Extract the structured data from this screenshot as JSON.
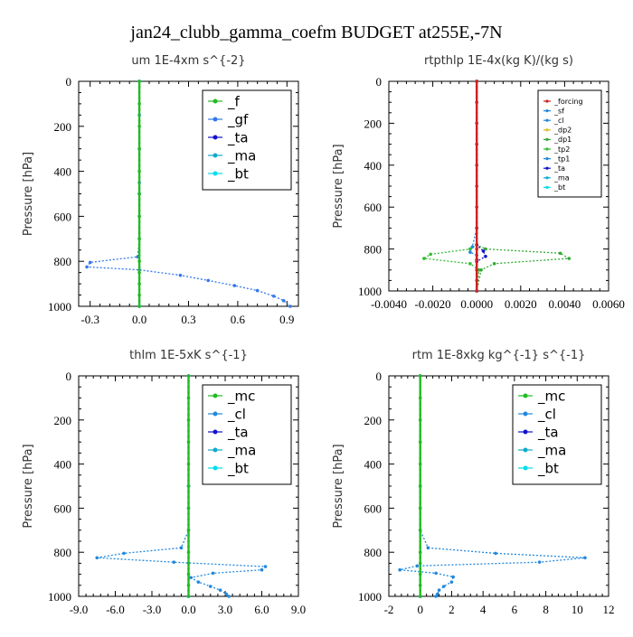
{
  "page": {
    "title": "jan24_clubb_gamma_coefm  BUDGET at255E,-7N"
  },
  "colors": {
    "mc": "#22bb22",
    "f": "#22bb22",
    "gf": "#3377ee",
    "cl": "#2288dd",
    "ta": "#1111cc",
    "ma": "#11aacc",
    "bt": "#00ddee",
    "forcing": "#cc2222",
    "tp2": "#33bb33",
    "dp2": "#ddbb22",
    "dp1": "#33aa33"
  },
  "chart_data": [
    {
      "type": "line",
      "title": "um   1E-4xm s^{-2}",
      "ylabel": "Pressure [hPa]",
      "xlim": [
        -0.37,
        0.97
      ],
      "ylim": [
        1000,
        0
      ],
      "x_ticks": [
        -0.3,
        0.0,
        0.3,
        0.6,
        0.9
      ],
      "x_tick_labels": [
        "-0.3",
        "0.0",
        "0.3",
        "0.6",
        "0.9"
      ],
      "y_ticks": [
        0,
        200,
        400,
        600,
        800,
        1000
      ],
      "y_tick_labels": [
        "0",
        "200",
        "400",
        "600",
        "800",
        "1000"
      ],
      "legend": {
        "position": "top-right",
        "size": "large",
        "entries": [
          "_f",
          "_gf",
          "_ta",
          "_ma",
          "_bt"
        ]
      },
      "series": [
        {
          "name": "_f",
          "color_key": "f",
          "points": [
            [
              0,
              0
            ],
            [
              0,
              100
            ],
            [
              0,
              200
            ],
            [
              0,
              300
            ],
            [
              0,
              400
            ],
            [
              0,
              500
            ],
            [
              0,
              600
            ],
            [
              0,
              700
            ],
            [
              0,
              800
            ],
            [
              0,
              850
            ],
            [
              0,
              900
            ],
            [
              0,
              950
            ],
            [
              0,
              1000
            ]
          ]
        },
        {
          "name": "_gf",
          "color_key": "gf",
          "points": [
            [
              0,
              0
            ],
            [
              0,
              150
            ],
            [
              0,
              300
            ],
            [
              0,
              450
            ],
            [
              0,
              600
            ],
            [
              0,
              700
            ],
            [
              -0.01,
              780
            ],
            [
              -0.3,
              805
            ],
            [
              -0.32,
              825
            ],
            [
              0.0,
              838
            ],
            [
              0.25,
              862
            ],
            [
              0.42,
              885
            ],
            [
              0.58,
              908
            ],
            [
              0.72,
              930
            ],
            [
              0.82,
              955
            ],
            [
              0.88,
              975
            ],
            [
              0.92,
              1000
            ]
          ]
        },
        {
          "name": "_ta",
          "color_key": "ta",
          "points": [
            [
              0,
              0
            ],
            [
              0,
              500
            ],
            [
              0,
              1000
            ]
          ]
        },
        {
          "name": "_ma",
          "color_key": "ma",
          "points": [
            [
              0,
              0
            ],
            [
              0,
              500
            ],
            [
              0,
              1000
            ]
          ]
        },
        {
          "name": "_bt",
          "color_key": "bt",
          "points": [
            [
              0,
              0
            ],
            [
              0,
              500
            ],
            [
              0,
              1000
            ]
          ]
        }
      ]
    },
    {
      "type": "line",
      "title": "rtpthlp   1E-4x(kg K)/(kg s)",
      "ylabel": "Pressure [hPa]",
      "xlim": [
        -0.004,
        0.006
      ],
      "ylim": [
        1000,
        0
      ],
      "x_ticks": [
        -0.004,
        -0.002,
        0.0,
        0.002,
        0.004,
        0.006
      ],
      "x_tick_labels": [
        "-0.0040",
        "-0.0020",
        "0.0000",
        "0.0020",
        "0.0040",
        "0.0060"
      ],
      "y_ticks": [
        0,
        200,
        400,
        600,
        800,
        1000
      ],
      "y_tick_labels": [
        "0",
        "200",
        "400",
        "600",
        "800",
        "1000"
      ],
      "legend": {
        "position": "top-right",
        "size": "small",
        "entries": [
          "_forcing",
          "_sf",
          "_cl",
          "_dp2",
          "_dp1",
          "_tp2",
          "_tp1",
          "_ta",
          "_ma",
          "_bt"
        ]
      },
      "series": [
        {
          "name": "_forcing",
          "color_key": "forcing",
          "points": [
            [
              0,
              0
            ],
            [
              0,
              100
            ],
            [
              0,
              200
            ],
            [
              0,
              300
            ],
            [
              0,
              400
            ],
            [
              0,
              500
            ],
            [
              0,
              600
            ],
            [
              0,
              700
            ],
            [
              0,
              800
            ],
            [
              0,
              850
            ],
            [
              0,
              900
            ],
            [
              0,
              950
            ],
            [
              0,
              1000
            ]
          ]
        },
        {
          "name": "_tp2",
          "color_key": "tp2",
          "points": [
            [
              0,
              0
            ],
            [
              0,
              700
            ],
            [
              0,
              780
            ],
            [
              -0.0003,
              800
            ],
            [
              -0.0021,
              825
            ],
            [
              -0.0024,
              845
            ],
            [
              -0.0003,
              870
            ],
            [
              0.0001,
              900
            ],
            [
              0,
              1000
            ]
          ]
        },
        {
          "name": "_dp1",
          "color_key": "dp1",
          "points": [
            [
              0,
              0
            ],
            [
              0,
              700
            ],
            [
              0,
              780
            ],
            [
              0.0004,
              800
            ],
            [
              0.0038,
              820
            ],
            [
              0.0042,
              845
            ],
            [
              0.0008,
              870
            ],
            [
              0.0002,
              900
            ],
            [
              0,
              1000
            ]
          ]
        },
        {
          "name": "_ta",
          "color_key": "ta",
          "points": [
            [
              0,
              0
            ],
            [
              0,
              780
            ],
            [
              0.0003,
              810
            ],
            [
              0.0004,
              835
            ],
            [
              0,
              860
            ],
            [
              0,
              1000
            ]
          ]
        },
        {
          "name": "_tp1",
          "color_key": "cl",
          "points": [
            [
              0,
              0
            ],
            [
              0,
              700
            ],
            [
              -0.0002,
              790
            ],
            [
              -0.0003,
              815
            ],
            [
              0,
              830
            ],
            [
              0,
              1000
            ]
          ]
        }
      ]
    },
    {
      "type": "line",
      "title": "thlm   1E-5xK s^{-1}",
      "ylabel": "Pressure [hPa]",
      "xlim": [
        -9.0,
        9.0
      ],
      "ylim": [
        1000,
        0
      ],
      "x_ticks": [
        -9,
        -6,
        -3,
        0,
        3,
        6,
        9
      ],
      "x_tick_labels": [
        "-9.0",
        "-6.0",
        "-3.0",
        "0.0",
        "3.0",
        "6.0",
        "9.0"
      ],
      "y_ticks": [
        0,
        200,
        400,
        600,
        800,
        1000
      ],
      "y_tick_labels": [
        "0",
        "200",
        "400",
        "600",
        "800",
        "1000"
      ],
      "legend": {
        "position": "top-right",
        "size": "large",
        "entries": [
          "_mc",
          "_cl",
          "_ta",
          "_ma",
          "_bt"
        ]
      },
      "series": [
        {
          "name": "_mc",
          "color_key": "mc",
          "points": [
            [
              0,
              0
            ],
            [
              0,
              100
            ],
            [
              0,
              200
            ],
            [
              0,
              300
            ],
            [
              0,
              400
            ],
            [
              0,
              500
            ],
            [
              0,
              600
            ],
            [
              0,
              700
            ],
            [
              0,
              800
            ],
            [
              0,
              850
            ],
            [
              0,
              900
            ],
            [
              0,
              950
            ],
            [
              0,
              1000
            ]
          ]
        },
        {
          "name": "_cl",
          "color_key": "cl",
          "points": [
            [
              0,
              0
            ],
            [
              0,
              600
            ],
            [
              0,
              700
            ],
            [
              -0.6,
              780
            ],
            [
              -5.3,
              805
            ],
            [
              -7.5,
              825
            ],
            [
              -1.2,
              845
            ],
            [
              6.3,
              865
            ],
            [
              6.0,
              880
            ],
            [
              2.0,
              895
            ],
            [
              0.2,
              915
            ],
            [
              0.8,
              935
            ],
            [
              1.8,
              955
            ],
            [
              2.6,
              972
            ],
            [
              3.1,
              990
            ],
            [
              3.3,
              1000
            ]
          ]
        },
        {
          "name": "_ta",
          "color_key": "ta",
          "points": [
            [
              0,
              0
            ],
            [
              0,
              500
            ],
            [
              0,
              1000
            ]
          ]
        },
        {
          "name": "_ma",
          "color_key": "ma",
          "points": [
            [
              0,
              0
            ],
            [
              0,
              500
            ],
            [
              0,
              1000
            ]
          ]
        },
        {
          "name": "_bt",
          "color_key": "bt",
          "points": [
            [
              0,
              0
            ],
            [
              0,
              500
            ],
            [
              0,
              1000
            ]
          ]
        }
      ]
    },
    {
      "type": "line",
      "title": "rtm   1E-8xkg kg^{-1} s^{-1}",
      "ylabel": "Pressure [hPa]",
      "xlim": [
        -2,
        12
      ],
      "ylim": [
        1000,
        0
      ],
      "x_ticks": [
        -2,
        0,
        2,
        4,
        6,
        8,
        10,
        12
      ],
      "x_tick_labels": [
        "-2",
        "0",
        "2",
        "4",
        "6",
        "8",
        "10",
        "12"
      ],
      "y_ticks": [
        0,
        200,
        400,
        600,
        800,
        1000
      ],
      "y_tick_labels": [
        "0",
        "200",
        "400",
        "600",
        "800",
        "1000"
      ],
      "legend": {
        "position": "top-right",
        "size": "large",
        "entries": [
          "_mc",
          "_cl",
          "_ta",
          "_ma",
          "_bt"
        ]
      },
      "series": [
        {
          "name": "_mc",
          "color_key": "mc",
          "points": [
            [
              0,
              0
            ],
            [
              0,
              100
            ],
            [
              0,
              200
            ],
            [
              0,
              300
            ],
            [
              0,
              400
            ],
            [
              0,
              500
            ],
            [
              0,
              600
            ],
            [
              0,
              700
            ],
            [
              0,
              800
            ],
            [
              0,
              850
            ],
            [
              0,
              900
            ],
            [
              0,
              950
            ],
            [
              0,
              1000
            ]
          ]
        },
        {
          "name": "_cl",
          "color_key": "cl",
          "points": [
            [
              0,
              0
            ],
            [
              0,
              600
            ],
            [
              0,
              700
            ],
            [
              0.5,
              780
            ],
            [
              4.8,
              805
            ],
            [
              10.5,
              825
            ],
            [
              7.6,
              845
            ],
            [
              -0.2,
              862
            ],
            [
              -1.3,
              880
            ],
            [
              1.0,
              895
            ],
            [
              2.1,
              912
            ],
            [
              2.0,
              935
            ],
            [
              1.5,
              955
            ],
            [
              1.2,
              972
            ],
            [
              1.1,
              990
            ],
            [
              1.0,
              1000
            ]
          ]
        },
        {
          "name": "_ta",
          "color_key": "ta",
          "points": [
            [
              0,
              0
            ],
            [
              0,
              500
            ],
            [
              0,
              1000
            ]
          ]
        },
        {
          "name": "_ma",
          "color_key": "ma",
          "points": [
            [
              0,
              0
            ],
            [
              0,
              500
            ],
            [
              0,
              1000
            ]
          ]
        },
        {
          "name": "_bt",
          "color_key": "bt",
          "points": [
            [
              0,
              0
            ],
            [
              0,
              500
            ],
            [
              0,
              1000
            ]
          ]
        }
      ]
    }
  ]
}
